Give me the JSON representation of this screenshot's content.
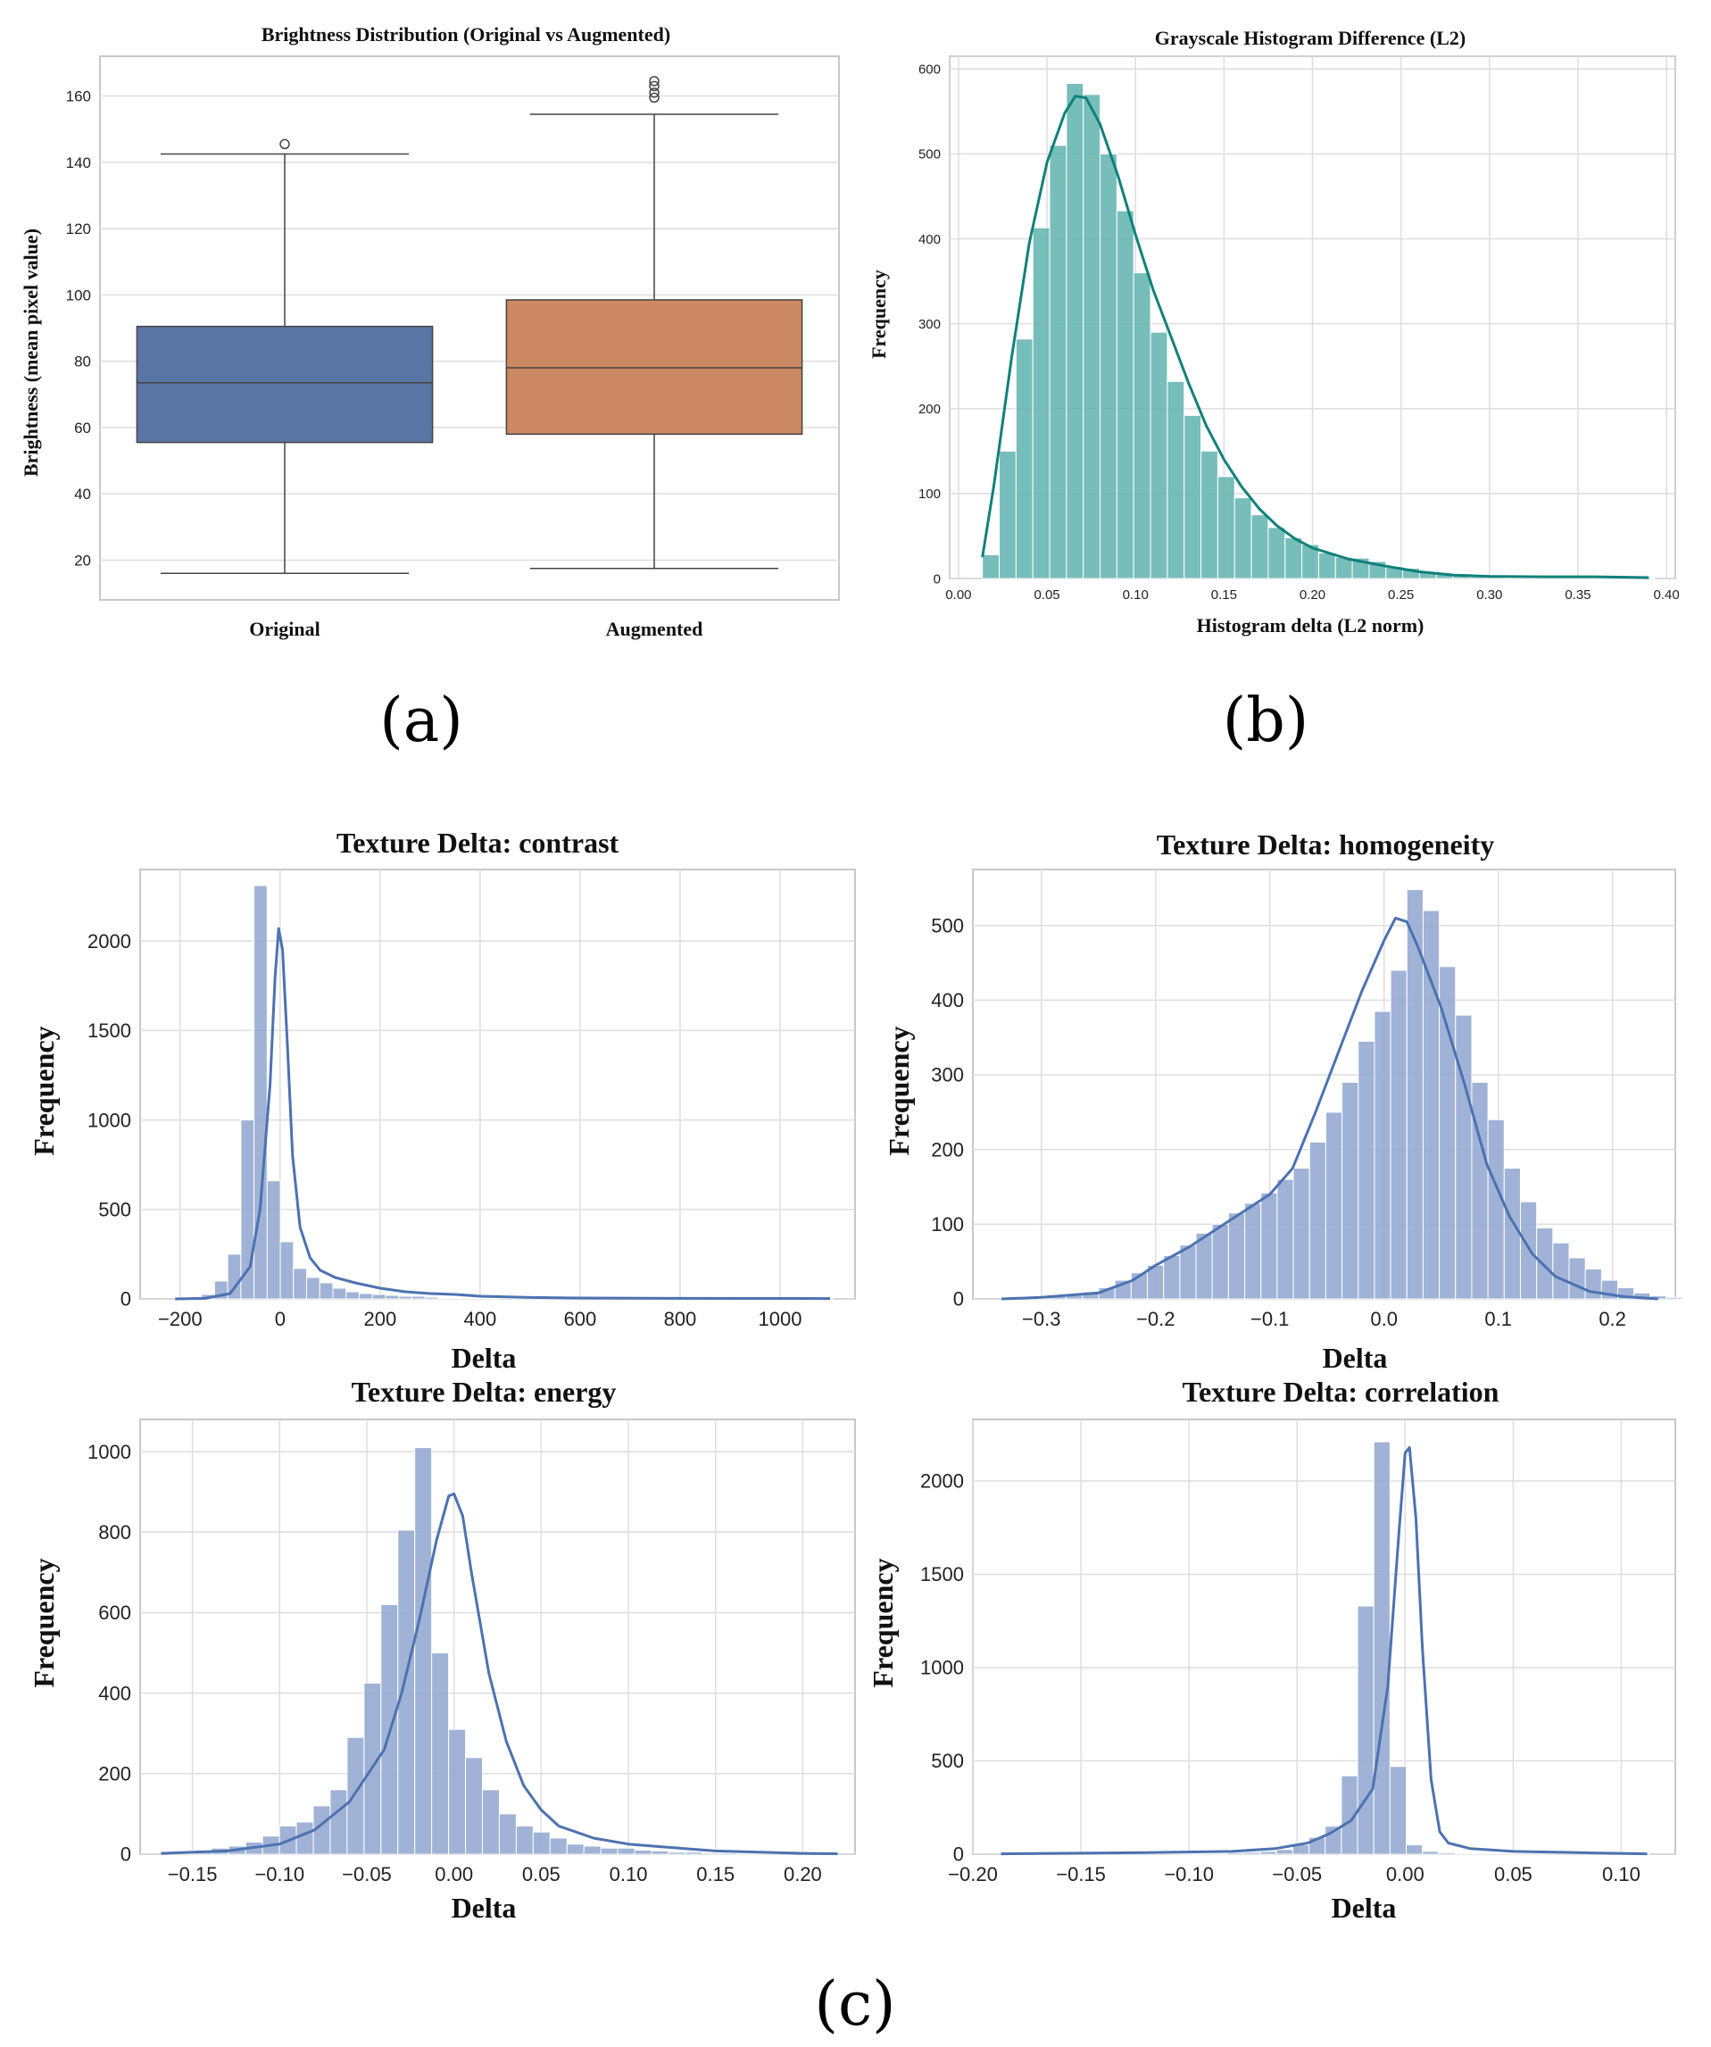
{
  "panel_labels": [
    "(a)",
    "(b)",
    "(c)"
  ],
  "chart_data": [
    {
      "id": "brightness",
      "type": "box",
      "title": "Brightness Distribution  (Original vs Augmented)",
      "xlabel": "",
      "ylabel": "Brightness (mean pixel value)",
      "ylim": [
        8,
        172
      ],
      "yticks": [
        20,
        40,
        60,
        80,
        100,
        120,
        140,
        160
      ],
      "grid": true,
      "boxes": [
        {
          "name": "Original",
          "color": "#5975a4",
          "whisker_low": 16,
          "q1": 55.5,
          "median": 73.5,
          "q3": 90.5,
          "whisker_high": 142.5,
          "outliers": [
            145.5
          ]
        },
        {
          "name": "Augmented",
          "color": "#cc8963",
          "whisker_low": 17.5,
          "q1": 58,
          "median": 78,
          "q3": 98.5,
          "whisker_high": 154.5,
          "outliers": [
            159.5,
            161,
            163,
            164.5
          ]
        }
      ]
    },
    {
      "id": "l2hist",
      "type": "histogram",
      "title": "Grayscale Histogram Difference (L2)",
      "xlabel": "Histogram delta (L2 norm)",
      "ylabel": "Frequency",
      "xlim": [
        -0.005,
        0.405
      ],
      "ylim": [
        0,
        615
      ],
      "xticks": [
        0.0,
        0.05,
        0.1,
        0.15,
        0.2,
        0.25,
        0.3,
        0.35,
        0.4
      ],
      "xtick_labels": [
        "0.00",
        "0.05",
        "0.10",
        "0.15",
        "0.20",
        "0.25",
        "0.30",
        "0.35",
        "0.40"
      ],
      "yticks": [
        0,
        100,
        200,
        300,
        400,
        500,
        600
      ],
      "grid": true,
      "bar_color": "#5fb3ae",
      "line_color": "#11807a",
      "bin_start": 0.0135,
      "bin_width": 0.0095,
      "values": [
        28,
        150,
        282,
        413,
        510,
        583,
        570,
        500,
        433,
        360,
        290,
        232,
        192,
        150,
        120,
        95,
        75,
        60,
        48,
        40,
        30,
        25,
        24,
        20,
        14,
        12,
        8,
        5,
        3,
        2,
        2,
        1,
        1,
        1,
        2,
        1,
        1,
        1,
        1,
        1
      ],
      "kde": [
        [
          0.0135,
          25
        ],
        [
          0.02,
          110
        ],
        [
          0.03,
          260
        ],
        [
          0.04,
          395
        ],
        [
          0.05,
          490
        ],
        [
          0.06,
          548
        ],
        [
          0.066,
          568
        ],
        [
          0.072,
          566
        ],
        [
          0.08,
          535
        ],
        [
          0.09,
          475
        ],
        [
          0.1,
          405
        ],
        [
          0.11,
          340
        ],
        [
          0.12,
          285
        ],
        [
          0.13,
          230
        ],
        [
          0.14,
          180
        ],
        [
          0.15,
          140
        ],
        [
          0.16,
          108
        ],
        [
          0.17,
          82
        ],
        [
          0.18,
          62
        ],
        [
          0.19,
          47
        ],
        [
          0.2,
          36
        ],
        [
          0.22,
          23
        ],
        [
          0.24,
          15
        ],
        [
          0.26,
          8
        ],
        [
          0.28,
          4
        ],
        [
          0.3,
          2.5
        ],
        [
          0.33,
          2
        ],
        [
          0.36,
          2
        ],
        [
          0.39,
          1
        ]
      ]
    },
    {
      "id": "contrast",
      "type": "histogram",
      "title": "Texture Delta: contrast",
      "xlabel": "Delta",
      "ylabel": "Frequency",
      "xlim": [
        -280,
        1150
      ],
      "ylim": [
        0,
        2400
      ],
      "xticks": [
        -200,
        0,
        200,
        400,
        600,
        800,
        1000
      ],
      "xtick_labels": [
        "−200",
        "0",
        "200",
        "400",
        "600",
        "800",
        "1000"
      ],
      "yticks": [
        0,
        500,
        1000,
        1500,
        2000
      ],
      "grid": true,
      "bar_color": "#8fa6d0",
      "line_color": "#4c72b0",
      "bin_start": -210,
      "bin_width": 26.3,
      "values": [
        3,
        8,
        25,
        100,
        250,
        1000,
        2310,
        660,
        320,
        170,
        120,
        90,
        60,
        40,
        30,
        25,
        20,
        15,
        15,
        10,
        5,
        5,
        5,
        5,
        5,
        5,
        3,
        3,
        3,
        3,
        3,
        3,
        2,
        2,
        2,
        2,
        2,
        2,
        2,
        2,
        2,
        2,
        2,
        2,
        2,
        2,
        2,
        2,
        2,
        2
      ],
      "kde": [
        [
          -210,
          0
        ],
        [
          -150,
          3
        ],
        [
          -100,
          30
        ],
        [
          -60,
          180
        ],
        [
          -40,
          500
        ],
        [
          -20,
          1200
        ],
        [
          -10,
          1800
        ],
        [
          -3,
          2070
        ],
        [
          5,
          1950
        ],
        [
          15,
          1400
        ],
        [
          25,
          800
        ],
        [
          40,
          400
        ],
        [
          60,
          230
        ],
        [
          80,
          160
        ],
        [
          110,
          120
        ],
        [
          150,
          90
        ],
        [
          200,
          60
        ],
        [
          250,
          40
        ],
        [
          300,
          30
        ],
        [
          350,
          25
        ],
        [
          400,
          15
        ],
        [
          500,
          8
        ],
        [
          600,
          5
        ],
        [
          800,
          3
        ],
        [
          1100,
          2
        ]
      ]
    },
    {
      "id": "homogeneity",
      "type": "histogram",
      "title": "Texture Delta: homogeneity",
      "xlabel": "Delta",
      "ylabel": "Frequency",
      "xlim": [
        -0.36,
        0.255
      ],
      "ylim": [
        0,
        575
      ],
      "xticks": [
        -0.3,
        -0.2,
        -0.1,
        0.0,
        0.1,
        0.2
      ],
      "xtick_labels": [
        "−0.3",
        "−0.2",
        "−0.1",
        "0.0",
        "0.1",
        "0.2"
      ],
      "yticks": [
        0,
        100,
        200,
        300,
        400,
        500
      ],
      "grid": true,
      "bar_color": "#8fa6d0",
      "line_color": "#4c72b0",
      "bin_start": -0.335,
      "bin_width": 0.0142,
      "values": [
        1,
        1,
        2,
        3,
        5,
        8,
        15,
        25,
        35,
        45,
        58,
        72,
        88,
        100,
        115,
        128,
        142,
        160,
        175,
        210,
        250,
        290,
        345,
        385,
        440,
        548,
        520,
        445,
        380,
        290,
        240,
        175,
        130,
        95,
        75,
        55,
        40,
        25,
        15,
        8,
        4,
        2
      ],
      "kde": [
        [
          -0.335,
          0
        ],
        [
          -0.3,
          2
        ],
        [
          -0.25,
          8
        ],
        [
          -0.22,
          25
        ],
        [
          -0.2,
          45
        ],
        [
          -0.17,
          70
        ],
        [
          -0.14,
          100
        ],
        [
          -0.12,
          120
        ],
        [
          -0.1,
          140
        ],
        [
          -0.08,
          175
        ],
        [
          -0.06,
          250
        ],
        [
          -0.04,
          330
        ],
        [
          -0.02,
          410
        ],
        [
          0.0,
          480
        ],
        [
          0.01,
          510
        ],
        [
          0.02,
          505
        ],
        [
          0.03,
          470
        ],
        [
          0.05,
          390
        ],
        [
          0.07,
          290
        ],
        [
          0.09,
          180
        ],
        [
          0.11,
          110
        ],
        [
          0.13,
          60
        ],
        [
          0.15,
          30
        ],
        [
          0.18,
          10
        ],
        [
          0.21,
          3
        ],
        [
          0.24,
          0
        ]
      ]
    },
    {
      "id": "energy",
      "type": "histogram",
      "title": "Texture Delta: energy",
      "xlabel": "Delta",
      "ylabel": "Frequency",
      "xlim": [
        -0.18,
        0.23
      ],
      "ylim": [
        0,
        1080
      ],
      "xticks": [
        -0.15,
        -0.1,
        -0.05,
        0.0,
        0.05,
        0.1,
        0.15,
        0.2
      ],
      "xtick_labels": [
        "−0.15",
        "−0.10",
        "−0.05",
        "0.00",
        "0.05",
        "0.10",
        "0.15",
        "0.20"
      ],
      "yticks": [
        0,
        200,
        400,
        600,
        800,
        1000
      ],
      "grid": true,
      "bar_color": "#8fa6d0",
      "line_color": "#4c72b0",
      "bin_start": -0.168,
      "bin_width": 0.0097,
      "values": [
        5,
        8,
        10,
        15,
        20,
        30,
        45,
        70,
        80,
        120,
        160,
        290,
        425,
        620,
        805,
        1010,
        500,
        310,
        240,
        160,
        100,
        70,
        55,
        40,
        25,
        20,
        15,
        15,
        10,
        8,
        5,
        5,
        3,
        3,
        2,
        2,
        2,
        1,
        1,
        1
      ],
      "kde": [
        [
          -0.168,
          2
        ],
        [
          -0.13,
          8
        ],
        [
          -0.1,
          25
        ],
        [
          -0.08,
          60
        ],
        [
          -0.06,
          130
        ],
        [
          -0.04,
          260
        ],
        [
          -0.03,
          400
        ],
        [
          -0.02,
          580
        ],
        [
          -0.01,
          780
        ],
        [
          -0.003,
          890
        ],
        [
          0.0,
          895
        ],
        [
          0.005,
          840
        ],
        [
          0.01,
          700
        ],
        [
          0.02,
          450
        ],
        [
          0.03,
          280
        ],
        [
          0.04,
          170
        ],
        [
          0.05,
          110
        ],
        [
          0.06,
          70
        ],
        [
          0.08,
          40
        ],
        [
          0.1,
          25
        ],
        [
          0.12,
          18
        ],
        [
          0.15,
          8
        ],
        [
          0.2,
          2
        ],
        [
          0.22,
          1
        ]
      ]
    },
    {
      "id": "correlation",
      "type": "histogram",
      "title": "Texture Delta: correlation",
      "xlabel": "Delta",
      "ylabel": "Frequency",
      "xlim": [
        -0.2,
        0.125
      ],
      "ylim": [
        0,
        2330
      ],
      "xticks": [
        -0.2,
        -0.15,
        -0.1,
        -0.05,
        0.0,
        0.05,
        0.1
      ],
      "xtick_labels": [
        "−0.20",
        "−0.15",
        "−0.10",
        "−0.05",
        "0.00",
        "0.05",
        "0.10"
      ],
      "yticks": [
        0,
        500,
        1000,
        1500,
        2000
      ],
      "grid": true,
      "bar_color": "#8fa6d0",
      "line_color": "#4c72b0",
      "bin_start": -0.187,
      "bin_width": 0.0075,
      "values": [
        1,
        1,
        1,
        1,
        1,
        2,
        2,
        2,
        2,
        2,
        3,
        3,
        4,
        5,
        8,
        10,
        15,
        25,
        50,
        90,
        150,
        420,
        1330,
        2210,
        470,
        50,
        15,
        8,
        5,
        3,
        2,
        2,
        1,
        1,
        1,
        1,
        1,
        1,
        1,
        1
      ],
      "kde": [
        [
          -0.187,
          2
        ],
        [
          -0.12,
          8
        ],
        [
          -0.08,
          15
        ],
        [
          -0.06,
          30
        ],
        [
          -0.045,
          60
        ],
        [
          -0.035,
          110
        ],
        [
          -0.025,
          180
        ],
        [
          -0.015,
          350
        ],
        [
          -0.008,
          900
        ],
        [
          -0.003,
          1700
        ],
        [
          0.0,
          2150
        ],
        [
          0.002,
          2180
        ],
        [
          0.005,
          1800
        ],
        [
          0.008,
          1100
        ],
        [
          0.012,
          400
        ],
        [
          0.016,
          120
        ],
        [
          0.02,
          60
        ],
        [
          0.03,
          30
        ],
        [
          0.05,
          15
        ],
        [
          0.08,
          8
        ],
        [
          0.112,
          2
        ]
      ]
    }
  ]
}
